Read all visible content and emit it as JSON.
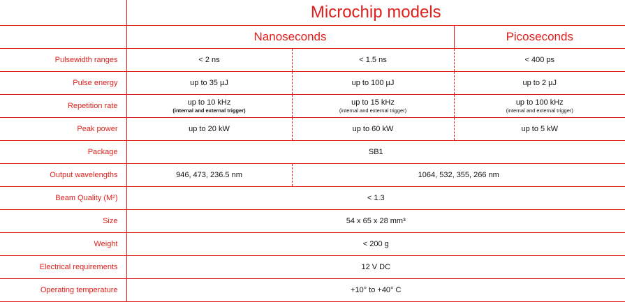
{
  "header": {
    "title": "Microchip models",
    "nano": "Nanoseconds",
    "pico": "Picoseconds"
  },
  "rows": {
    "pulsewidth": {
      "label": "Pulsewidth ranges",
      "nano_a": "< 2 ns",
      "nano_b": "< 1.5 ns",
      "pico": "< 400 ps"
    },
    "energy": {
      "label": "Pulse energy",
      "nano_a": "up to 35 µJ",
      "nano_b": "up to 100 µJ",
      "pico": "up to 2 µJ"
    },
    "reprate": {
      "label": "Repetition rate",
      "nano_a": "up to 10 kHz",
      "nano_a_note": "(internal and external trigger)",
      "nano_b": "up to 15 kHz",
      "nano_b_note": "(internal and external trigger)",
      "pico": "up to 100 kHz",
      "pico_note": "(internal and external trigger)"
    },
    "peak": {
      "label": "Peak power",
      "nano_a": "up to 20 kW",
      "nano_b": "up to 60 kW",
      "pico": "up to 5 kW"
    },
    "package": {
      "label": "Package",
      "all": "SB1"
    },
    "wavelengths": {
      "label": "Output wavelengths",
      "nano_a": "946, 473, 236.5 nm",
      "rest": "1064, 532, 355, 266 nm"
    },
    "beam": {
      "label": "Beam Quality (M²)",
      "all": "< 1.3"
    },
    "size": {
      "label": "Size",
      "all": "54 x 65 x 28 mm³"
    },
    "weight": {
      "label": "Weight",
      "all": "< 200 g"
    },
    "electrical": {
      "label": "Electrical requirements",
      "all": "12 V DC"
    },
    "temperature": {
      "label": "Operating temperature",
      "all": "+10° to +40° C"
    }
  },
  "colors": {
    "accent": "#e0201c",
    "text": "#111111",
    "background": "#ffffff"
  }
}
